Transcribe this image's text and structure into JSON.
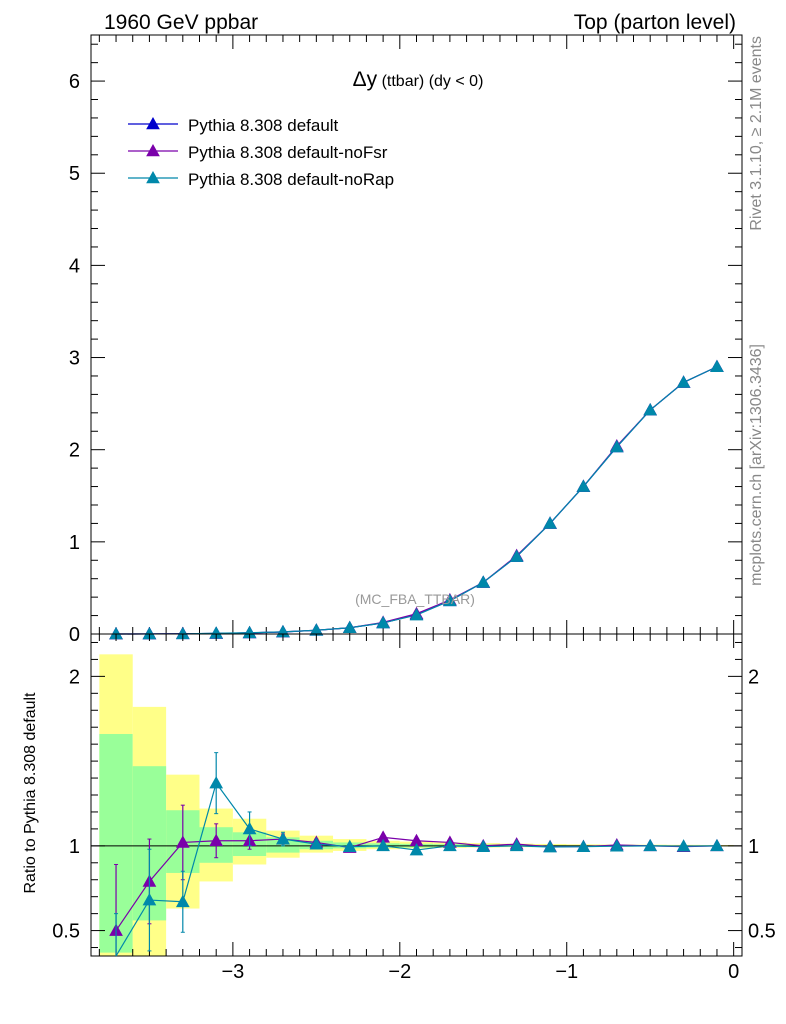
{
  "header": {
    "left": "1960 GeV ppbar",
    "right": "Top (parton level)"
  },
  "side": {
    "rivet": "Rivet 3.1.10, ≥ 2.1M events",
    "mcplots": "mcplots.cern.ch [arXiv:1306.3436]"
  },
  "plot": {
    "title_main": "Δy",
    "title_sub": " (ttbar) (dy < 0)",
    "watermark": "(MC_FBA_TTBAR)",
    "ratio_ylabel": "Ratio to Pythia 8.308 default"
  },
  "colors": {
    "default": "#0000cc",
    "noFsr": "#7a00aa",
    "noRap": "#0088aa",
    "band_inner": "#99ff99",
    "band_outer": "#ffff88"
  },
  "chart_data": [
    {
      "type": "line",
      "xlim": [
        -3.85,
        0.05
      ],
      "ylim": [
        0,
        6.5
      ],
      "xticks": [
        -3,
        -2,
        -1,
        0
      ],
      "yticks": [
        0,
        1,
        2,
        3,
        4,
        5,
        6
      ],
      "x": [
        -3.7,
        -3.5,
        -3.3,
        -3.1,
        -2.9,
        -2.7,
        -2.5,
        -2.3,
        -2.1,
        -1.9,
        -1.7,
        -1.5,
        -1.3,
        -1.1,
        -0.9,
        -0.7,
        -0.5,
        -0.3,
        -0.1
      ],
      "series": [
        {
          "name": "Pythia 8.308 default",
          "color": "#0000cc",
          "values": [
            0.0002,
            0.0008,
            0.0025,
            0.006,
            0.012,
            0.022,
            0.04,
            0.068,
            0.12,
            0.21,
            0.36,
            0.56,
            0.84,
            1.2,
            1.6,
            2.03,
            2.43,
            2.73,
            2.9
          ]
        },
        {
          "name": "Pythia 8.308 default-noFsr",
          "color": "#7a00aa",
          "values": [
            0.0001,
            0.0007,
            0.0026,
            0.0062,
            0.0125,
            0.0228,
            0.041,
            0.068,
            0.126,
            0.22,
            0.37,
            0.56,
            0.85,
            1.2,
            1.6,
            2.04,
            2.43,
            2.73,
            2.9
          ]
        },
        {
          "name": "Pythia 8.308 default-noRap",
          "color": "#0088aa",
          "values": [
            0.0001,
            0.0005,
            0.0017,
            0.0078,
            0.0133,
            0.0229,
            0.0404,
            0.068,
            0.12,
            0.205,
            0.36,
            0.56,
            0.84,
            1.2,
            1.6,
            2.03,
            2.43,
            2.73,
            2.9
          ]
        }
      ]
    },
    {
      "type": "line",
      "ylabel": "Ratio to Pythia 8.308 default",
      "xlim": [
        -3.85,
        0.05
      ],
      "ylim": [
        0.35,
        2.25
      ],
      "xticks": [
        -3,
        -2,
        -1,
        0
      ],
      "yticks": [
        0.5,
        1,
        2
      ],
      "x": [
        -3.7,
        -3.5,
        -3.3,
        -3.1,
        -2.9,
        -2.7,
        -2.5,
        -2.3,
        -2.1,
        -1.9,
        -1.7,
        -1.5,
        -1.3,
        -1.1,
        -0.9,
        -0.7,
        -0.5,
        -0.3,
        -0.1
      ],
      "bands": {
        "inner": {
          "lo": [
            0.37,
            0.56,
            0.84,
            0.9,
            0.94,
            0.96,
            0.98,
            0.985,
            0.99,
            0.99,
            0.993,
            0.995,
            0.996,
            0.997,
            0.997,
            0.998,
            0.998,
            0.998,
            0.998
          ],
          "hi": [
            1.66,
            1.47,
            1.21,
            1.11,
            1.08,
            1.05,
            1.03,
            1.02,
            1.015,
            1.012,
            1.01,
            1.008,
            1.006,
            1.005,
            1.004,
            1.003,
            1.003,
            1.002,
            1.002
          ]
        },
        "outer": {
          "lo": [
            0.35,
            0.35,
            0.63,
            0.79,
            0.89,
            0.93,
            0.96,
            0.97,
            0.98,
            0.985,
            0.988,
            0.99,
            0.992,
            0.993,
            0.994,
            0.995,
            0.996,
            0.996,
            0.997
          ],
          "hi": [
            2.13,
            1.82,
            1.42,
            1.22,
            1.16,
            1.09,
            1.06,
            1.04,
            1.03,
            1.025,
            1.02,
            1.016,
            1.013,
            1.011,
            1.009,
            1.008,
            1.007,
            1.006,
            1.005
          ]
        }
      },
      "series": [
        {
          "name": "Pythia 8.308 default-noFsr",
          "color": "#7a00aa",
          "values": [
            0.5,
            0.79,
            1.02,
            1.03,
            1.03,
            1.04,
            1.02,
            0.99,
            1.05,
            1.03,
            1.02,
            1.0,
            1.01,
            0.995,
            0.995,
            1.005,
            1.0,
            0.995,
            1.0
          ],
          "err": [
            0.39,
            0.25,
            0.22,
            0.1,
            0.05,
            0.03,
            0.02,
            0.015,
            0.01,
            0.01,
            0.008,
            0.006,
            0.005,
            0.004,
            0.004,
            0.003,
            0.003,
            0.002,
            0.002
          ]
        },
        {
          "name": "Pythia 8.308 default-noRap",
          "color": "#0088aa",
          "values": [
            0.3,
            0.68,
            0.67,
            1.37,
            1.1,
            1.04,
            1.01,
            0.995,
            1.0,
            0.975,
            1.0,
            0.995,
            1.0,
            0.993,
            0.995,
            0.998,
            1.0,
            0.998,
            1.0
          ],
          "err": [
            0.3,
            0.3,
            0.18,
            0.18,
            0.1,
            0.04,
            0.02,
            0.015,
            0.01,
            0.01,
            0.008,
            0.006,
            0.005,
            0.004,
            0.004,
            0.003,
            0.003,
            0.002,
            0.002
          ]
        }
      ]
    }
  ]
}
